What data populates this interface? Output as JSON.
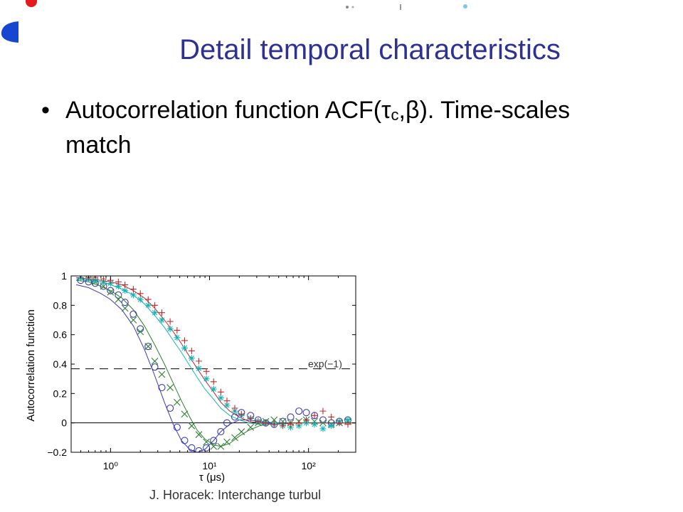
{
  "slide": {
    "title": "Detail temporal characteristics",
    "bullet": {
      "text_before": "Autocorrelation function ACF(",
      "tau": "τ",
      "sub_c": "c",
      "comma": ",",
      "beta": "β",
      "text_after": "). Time-scales match"
    },
    "footer": "J. Horacek: Interchange turbul"
  },
  "colors": {
    "title": "#2e3192",
    "series_blue": "#3a3ab8",
    "series_green": "#2e7d32",
    "series_cyan": "#17b3b3",
    "series_red": "#c62828"
  },
  "chart_data": {
    "type": "scatter",
    "xscale": "log",
    "xlim": [
      0.4,
      300
    ],
    "ylim": [
      -0.2,
      1.0
    ],
    "xlabel": "τ (μs)",
    "ylabel": "Autocorrelation function",
    "xticks": [
      1,
      10,
      100
    ],
    "xtick_labels": [
      "10⁰",
      "10¹",
      "10²"
    ],
    "yticks": [
      -0.2,
      0,
      0.2,
      0.4,
      0.6,
      0.8,
      1
    ],
    "ytick_labels": [
      "−0.2",
      "0",
      "0.2",
      "0.4",
      "0.6",
      "0.8",
      "1"
    ],
    "reference_lines": [
      {
        "y": 0.368,
        "style": "dashed",
        "label": "exp(−1)"
      },
      {
        "y": 0,
        "style": "solid"
      }
    ],
    "series": [
      {
        "marker": "circle",
        "color": "#3a3ab8",
        "x": [
          0.5,
          0.6,
          0.7,
          0.85,
          1.0,
          1.2,
          1.4,
          1.7,
          2.0,
          2.4,
          2.8,
          3.3,
          4.0,
          4.7,
          5.6,
          6.6,
          7.8,
          9.3,
          11,
          13,
          15,
          18,
          21,
          26,
          31,
          37,
          45,
          55,
          66,
          80,
          95,
          115,
          140,
          170,
          205,
          250
        ],
        "y": [
          0.97,
          0.96,
          0.95,
          0.93,
          0.9,
          0.87,
          0.82,
          0.74,
          0.64,
          0.52,
          0.38,
          0.24,
          0.1,
          -0.03,
          -0.12,
          -0.17,
          -0.19,
          -0.17,
          -0.12,
          -0.06,
          0.0,
          0.04,
          0.07,
          0.05,
          0.02,
          0.0,
          -0.01,
          0.01,
          0.04,
          0.08,
          0.07,
          0.05,
          0.02,
          0.0,
          0.01,
          0.02
        ],
        "fit": {
          "x": [
            0.45,
            0.6,
            0.8,
            1.0,
            1.3,
            1.7,
            2.2,
            2.8,
            3.5,
            4.3,
            5.2,
            6.3,
            7.5,
            9.0,
            11,
            13,
            16,
            20,
            25,
            32,
            45,
            70,
            120,
            300
          ],
          "y": [
            0.94,
            0.92,
            0.88,
            0.84,
            0.77,
            0.66,
            0.5,
            0.32,
            0.14,
            -0.01,
            -0.12,
            -0.18,
            -0.2,
            -0.18,
            -0.12,
            -0.06,
            -0.01,
            0.02,
            0.02,
            0.01,
            0.0,
            0.0,
            0.0,
            0.0
          ]
        }
      },
      {
        "marker": "x",
        "color": "#2e7d32",
        "x": [
          0.5,
          0.6,
          0.7,
          0.85,
          1.0,
          1.2,
          1.4,
          1.7,
          2.0,
          2.4,
          2.8,
          3.3,
          4.0,
          4.7,
          5.6,
          6.6,
          7.8,
          9.3,
          11,
          13,
          15,
          18,
          21,
          26,
          31,
          37,
          45,
          55,
          66,
          80,
          95,
          115,
          140,
          170,
          205,
          250
        ],
        "y": [
          0.99,
          0.98,
          0.96,
          0.93,
          0.89,
          0.84,
          0.78,
          0.7,
          0.62,
          0.52,
          0.42,
          0.33,
          0.24,
          0.14,
          0.06,
          -0.02,
          -0.08,
          -0.13,
          -0.16,
          -0.16,
          -0.13,
          -0.1,
          -0.06,
          -0.03,
          0.0,
          0.01,
          0.02,
          0.01,
          0.0,
          0.01,
          0.02,
          0.01,
          0.0,
          -0.01,
          0.0,
          0.01
        ],
        "fit": {
          "x": [
            0.45,
            0.6,
            0.8,
            1.0,
            1.3,
            1.7,
            2.2,
            2.8,
            3.5,
            4.3,
            5.2,
            6.3,
            7.5,
            9.0,
            11,
            13,
            16,
            20,
            25,
            32,
            45,
            70,
            120,
            300
          ],
          "y": [
            0.97,
            0.96,
            0.93,
            0.9,
            0.85,
            0.77,
            0.66,
            0.53,
            0.4,
            0.27,
            0.15,
            0.04,
            -0.05,
            -0.11,
            -0.15,
            -0.16,
            -0.14,
            -0.09,
            -0.05,
            -0.02,
            0.0,
            0.0,
            0.0,
            0.0
          ]
        }
      },
      {
        "marker": "asterisk",
        "color": "#17b3b3",
        "x": [
          0.5,
          0.6,
          0.7,
          0.85,
          1.0,
          1.2,
          1.4,
          1.7,
          2.0,
          2.4,
          2.8,
          3.3,
          4.0,
          4.7,
          5.6,
          6.6,
          7.8,
          9.3,
          11,
          13,
          15,
          18,
          21,
          26,
          31,
          37,
          45,
          55,
          66,
          80,
          95,
          115,
          140,
          170,
          205,
          250
        ],
        "y": [
          0.99,
          0.98,
          0.97,
          0.96,
          0.95,
          0.93,
          0.9,
          0.87,
          0.84,
          0.8,
          0.75,
          0.7,
          0.64,
          0.58,
          0.51,
          0.44,
          0.37,
          0.3,
          0.23,
          0.17,
          0.12,
          0.08,
          0.05,
          0.03,
          0.01,
          0.0,
          -0.01,
          -0.02,
          -0.03,
          -0.02,
          0.0,
          -0.01,
          -0.04,
          -0.02,
          0.01,
          0.02
        ],
        "fit": {
          "x": [
            0.45,
            0.6,
            0.8,
            1.0,
            1.3,
            1.7,
            2.2,
            2.8,
            3.5,
            4.3,
            5.2,
            6.3,
            7.5,
            9.0,
            11,
            13,
            16,
            20,
            25,
            32,
            45,
            70,
            120,
            300
          ],
          "y": [
            0.98,
            0.97,
            0.96,
            0.94,
            0.91,
            0.87,
            0.81,
            0.73,
            0.65,
            0.56,
            0.48,
            0.39,
            0.31,
            0.23,
            0.16,
            0.1,
            0.05,
            0.02,
            0.0,
            -0.01,
            -0.01,
            0.0,
            0.0,
            0.0
          ]
        }
      },
      {
        "marker": "plus",
        "color": "#c62828",
        "x": [
          0.5,
          0.6,
          0.7,
          0.85,
          1.0,
          1.2,
          1.4,
          1.7,
          2.0,
          2.4,
          2.8,
          3.3,
          4.0,
          4.7,
          5.6,
          6.6,
          7.8,
          9.3,
          11,
          13,
          15,
          18,
          21,
          26,
          31,
          37,
          45,
          55,
          66,
          80,
          95,
          115,
          140,
          170,
          205,
          250
        ],
        "y": [
          1.0,
          0.99,
          0.99,
          0.98,
          0.97,
          0.96,
          0.94,
          0.91,
          0.88,
          0.84,
          0.8,
          0.75,
          0.69,
          0.63,
          0.56,
          0.49,
          0.42,
          0.35,
          0.28,
          0.21,
          0.15,
          0.1,
          0.06,
          0.03,
          0.01,
          0.0,
          -0.01,
          -0.02,
          -0.01,
          0.0,
          0.02,
          0.05,
          0.08,
          0.04,
          0.0,
          -0.01
        ],
        "fit": {
          "x": [
            0.45,
            0.6,
            0.8,
            1.0,
            1.3,
            1.7,
            2.2,
            2.8,
            3.5,
            4.3,
            5.2,
            6.3,
            7.5,
            9.0,
            11,
            13,
            16,
            20,
            25,
            32,
            45,
            70,
            120,
            300
          ],
          "y": [
            0.99,
            0.98,
            0.97,
            0.96,
            0.94,
            0.9,
            0.85,
            0.78,
            0.7,
            0.62,
            0.54,
            0.45,
            0.37,
            0.29,
            0.21,
            0.14,
            0.08,
            0.04,
            0.01,
            0.0,
            -0.01,
            0.0,
            0.0,
            0.0
          ]
        }
      }
    ]
  }
}
